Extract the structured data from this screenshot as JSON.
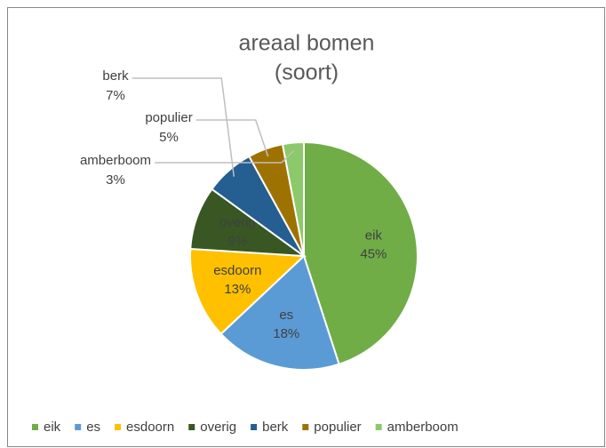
{
  "chart_data": {
    "type": "pie",
    "title": [
      "areaal bomen",
      "(soort)"
    ],
    "categories": [
      "eik",
      "es",
      "esdoorn",
      "overig",
      "berk",
      "populier",
      "amberboom"
    ],
    "values": [
      45,
      18,
      13,
      9,
      7,
      5,
      3
    ],
    "value_labels": [
      "45%",
      "18%",
      "13%",
      "9%",
      "7%",
      "5%",
      "3%"
    ],
    "colors": [
      "#70ad47",
      "#5b9bd5",
      "#ffc000",
      "#385723",
      "#255e91",
      "#9e7200",
      "#8cc96a"
    ],
    "legend": "bottom"
  }
}
